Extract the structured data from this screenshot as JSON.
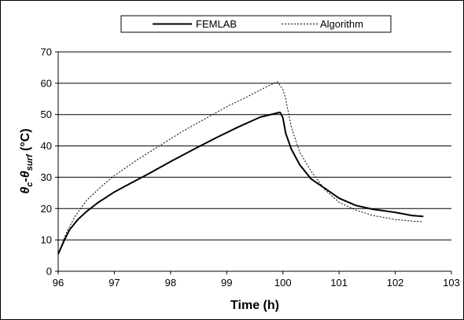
{
  "chart_data": {
    "type": "line",
    "xlabel": "Time (h)",
    "ylabel": {
      "symbol": "θ",
      "sub1": "c",
      "dash": "-",
      "sub2": "surf",
      "unit": " (°C)"
    },
    "xlim": [
      96,
      103
    ],
    "ylim": [
      0,
      70
    ],
    "xticks": [
      96,
      97,
      98,
      99,
      100,
      101,
      102,
      103
    ],
    "yticks": [
      0,
      10,
      20,
      30,
      40,
      50,
      60,
      70
    ],
    "grid": "horizontal",
    "legend_position": "top",
    "series": [
      {
        "name": "FEMLAB",
        "style": "solid",
        "color": "#000000",
        "x": [
          96.0,
          96.1,
          96.2,
          96.35,
          96.5,
          96.7,
          97.0,
          97.3,
          97.6,
          98.0,
          98.4,
          98.8,
          99.2,
          99.6,
          99.95,
          100.0,
          100.05,
          100.15,
          100.3,
          100.5,
          100.8,
          101.0,
          101.3,
          101.6,
          102.0,
          102.3,
          102.5
        ],
        "values": [
          5.5,
          9.5,
          13.2,
          16.5,
          19.0,
          21.8,
          25.3,
          28.2,
          31.0,
          35.0,
          38.8,
          42.5,
          46.0,
          49.2,
          50.7,
          49.0,
          44.0,
          39.0,
          34.0,
          29.5,
          25.8,
          23.3,
          21.0,
          19.8,
          18.8,
          17.8,
          17.5
        ]
      },
      {
        "name": "Algorithm",
        "style": "dotted",
        "color": "#000000",
        "x": [
          96.0,
          96.15,
          96.3,
          96.5,
          96.75,
          97.0,
          97.4,
          97.8,
          98.2,
          98.6,
          99.0,
          99.4,
          99.7,
          99.9,
          100.0,
          100.05,
          100.15,
          100.3,
          100.5,
          100.75,
          101.0,
          101.3,
          101.6,
          102.0,
          102.3,
          102.5
        ],
        "values": [
          5.5,
          12.5,
          17.5,
          22.5,
          26.8,
          30.5,
          35.5,
          40.0,
          44.5,
          48.5,
          52.5,
          56.0,
          58.8,
          60.5,
          58.0,
          55.0,
          46.0,
          38.0,
          32.0,
          26.0,
          22.0,
          19.5,
          17.8,
          16.5,
          16.0,
          15.8
        ]
      }
    ]
  }
}
